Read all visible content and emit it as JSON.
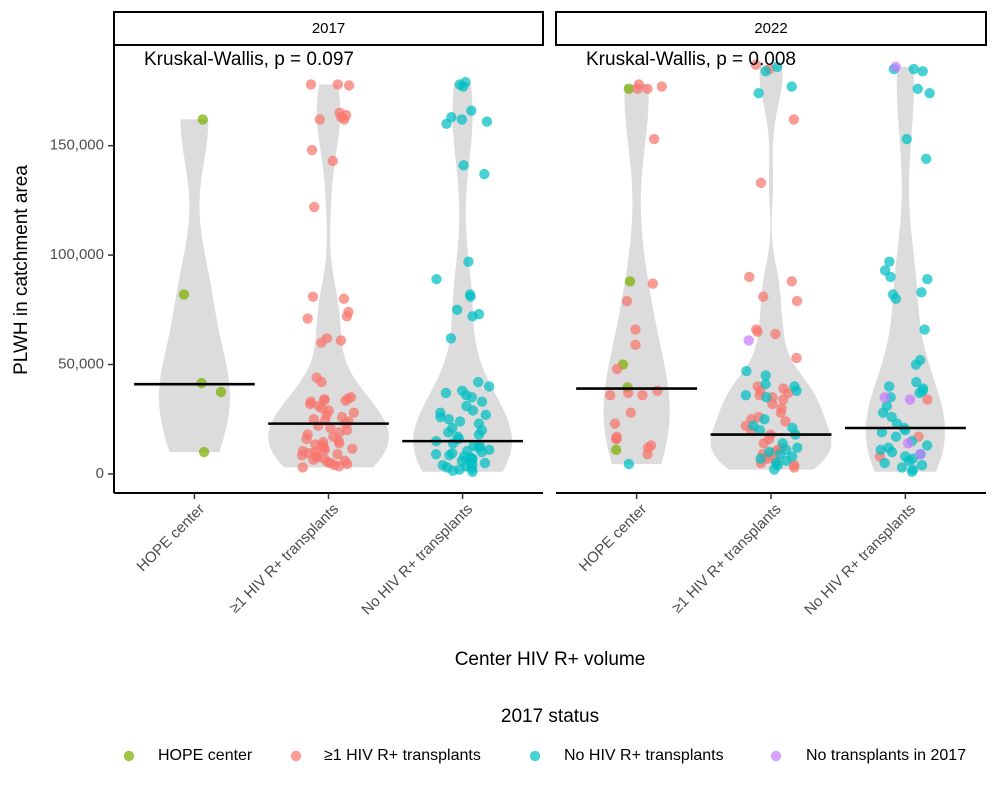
{
  "chart_data": {
    "type": "violin-jitter",
    "y_label": "PLWH in catchment area",
    "x_label": "Center HIV R+ volume",
    "legend_title": "2017 status",
    "legend_position": "bottom",
    "ylim": [
      -8700,
      196000
    ],
    "yticks": [
      0,
      {
        "value": 50000,
        "label": "50,000"
      },
      {
        "value": 100000,
        "label": "100,000"
      },
      {
        "value": 150000,
        "label": "150,000"
      }
    ],
    "categories": [
      "HOPE center",
      "≥1 HIV R+ transplants",
      "No HIV R+ transplants"
    ],
    "series": [
      {
        "name": "HOPE center",
        "color": "#7CAE00"
      },
      {
        "name": "≥1 HIV R+ transplants",
        "color": "#F8766D"
      },
      {
        "name": "No HIV R+ transplants",
        "color": "#00BFC4"
      },
      {
        "name": "No transplants in 2017",
        "color": "#C77CFF"
      }
    ],
    "panels": [
      {
        "title": "2017",
        "annotation": "Kruskal-Wallis, p = 0.097",
        "groups": [
          {
            "median": 41000,
            "values": [
              [
                162000,
                82000,
                41500,
                37500,
                10000
              ],
              [],
              [],
              []
            ]
          },
          {
            "median": 23000,
            "values": [
              [],
              [
                178000,
                178000,
                177500,
                165000,
                164000,
                163000,
                162000,
                162000,
                148000,
                143000,
                122000,
                81000,
                80000,
                74000,
                72000,
                71000,
                62000,
                61000,
                60000,
                44000,
                42000,
                35000,
                34500,
                34000,
                34000,
                33500,
                33000,
                32000,
                31000,
                30000,
                29000,
                28000,
                27000,
                26000,
                25000,
                24500,
                24000,
                23000,
                22000,
                21000,
                20000,
                19000,
                18000,
                17000,
                16000,
                15000,
                14500,
                14000,
                13500,
                13000,
                12500,
                12000,
                11500,
                11000,
                10500,
                10000,
                9500,
                9000,
                8500,
                8000,
                7500,
                7000,
                6500,
                6000,
                5500,
                5000,
                4500,
                4000,
                3500,
                3000
              ],
              [],
              []
            ]
          },
          {
            "median": 15000,
            "values": [
              [],
              [],
              [
                179000,
                178000,
                177000,
                166000,
                163000,
                162000,
                161000,
                160000,
                141000,
                137000,
                97000,
                89000,
                82000,
                81000,
                75000,
                73000,
                72000,
                62000,
                42000,
                40000,
                38000,
                37000,
                36000,
                35000,
                33000,
                31000,
                29000,
                28000,
                27000,
                26000,
                25000,
                24000,
                23000,
                21000,
                20000,
                19000,
                18000,
                17000,
                16000,
                15000,
                14000,
                13000,
                12500,
                12000,
                11000,
                10500,
                10000,
                9500,
                9000,
                8500,
                8000,
                7500,
                7000,
                6500,
                6000,
                5500,
                5000,
                4500,
                4000,
                3500,
                3000,
                2500,
                2000,
                1500,
                1000
              ],
              []
            ]
          }
        ]
      },
      {
        "title": "2022",
        "annotation": "Kruskal-Wallis, p = 0.008",
        "groups": [
          {
            "median": 39000,
            "values": [
              [
                176000,
                88000,
                50000,
                39500,
                11000
              ],
              [
                178000,
                177000,
                176000,
                176000,
                153000,
                87000,
                79000,
                66000,
                59000,
                48000,
                38000,
                37000,
                36000,
                36000,
                28000,
                23000,
                17000,
                16000,
                16000,
                13000,
                12000,
                9000
              ],
              [
                4500
              ],
              []
            ]
          },
          {
            "median": 18000,
            "values": [
              [],
              [
                187000,
                185000,
                162000,
                133000,
                90000,
                88000,
                81000,
                79000,
                66000,
                65000,
                64000,
                53000,
                40000,
                39000,
                38000,
                37000,
                36000,
                35000,
                34000,
                32000,
                30000,
                28000,
                26000,
                25000,
                24000,
                22000,
                20000,
                18000,
                16000,
                14000,
                12000,
                11000,
                10000,
                9000,
                8000,
                7000,
                6000,
                5000,
                4000,
                3000
              ],
              [
                186000,
                184000,
                177000,
                174000,
                47000,
                45000,
                41000,
                40000,
                38000,
                36000,
                35000,
                25000,
                22000,
                21000,
                20000,
                18000,
                14000,
                12000,
                11000,
                10000,
                9000,
                8000,
                7000,
                6000,
                5000,
                4000,
                2000
              ],
              [
                61000
              ]
            ]
          },
          {
            "median": 21000,
            "values": [
              [],
              [
                34000,
                17000,
                8000
              ],
              [
                185000,
                185000,
                184000,
                176000,
                174000,
                153000,
                144000,
                97000,
                93000,
                90000,
                89000,
                83000,
                82000,
                80000,
                66000,
                52000,
                50000,
                42000,
                40000,
                39000,
                38000,
                37000,
                35000,
                31000,
                28000,
                26000,
                23000,
                21000,
                20000,
                19000,
                17000,
                15000,
                13000,
                12000,
                11000,
                10000,
                9000,
                8000,
                7000,
                6000,
                5000,
                4000,
                3000,
                2000,
                1000
              ],
              [
                186000,
                35000,
                34000,
                14000,
                9000
              ]
            ]
          }
        ]
      }
    ]
  }
}
